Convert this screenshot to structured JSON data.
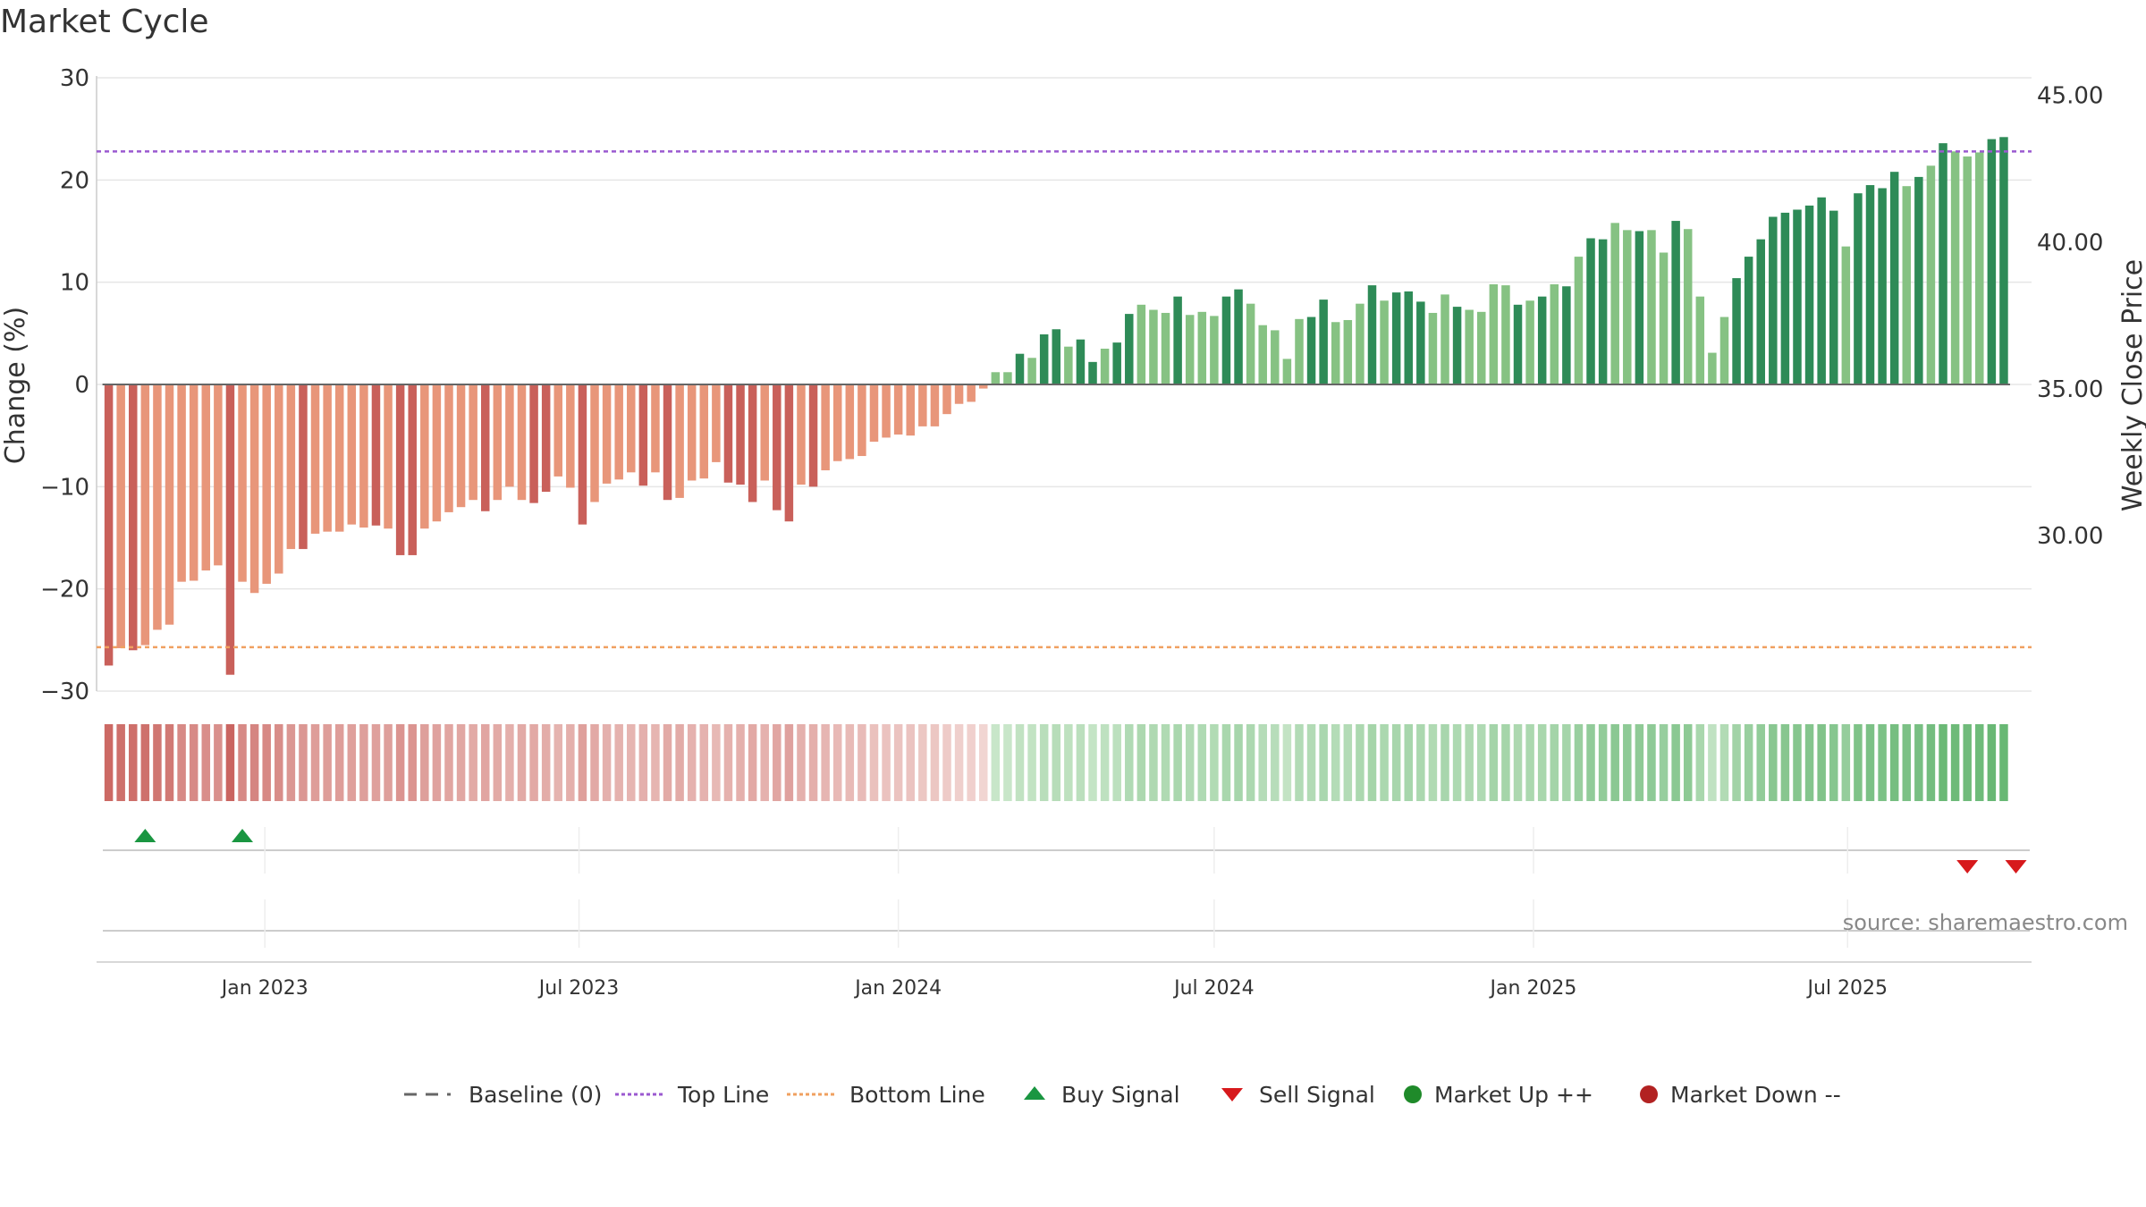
{
  "chart_data": {
    "type": "bar",
    "title": "Market Cycle",
    "ylabel": "Change (%)",
    "y2label": "Weekly Close Price",
    "ylim": [
      -30,
      30
    ],
    "y_ticks": [
      30,
      20,
      10,
      0,
      -10,
      -20,
      -30
    ],
    "y_tick_labels": [
      "30",
      "20",
      "10",
      "0",
      "−10",
      "−20",
      "−30"
    ],
    "y2_ticks": [
      "45.00",
      "40.00",
      "35.00",
      "30.00"
    ],
    "y2_tick_values": [
      45,
      40,
      35,
      30
    ],
    "y2lim": [
      24.7,
      45.6
    ],
    "x_ticks": [
      "Jan 2023",
      "Jul 2023",
      "Jan 2024",
      "Jul 2024",
      "Jan 2025",
      "Jul 2025"
    ],
    "x_tick_dates": [
      "2023-01-01",
      "2023-07-01",
      "2024-01-01",
      "2024-07-01",
      "2025-01-01",
      "2025-07-01"
    ],
    "x_start": "2022-09-26",
    "x_end": "2025-10-15",
    "top_line": 22.8,
    "bottom_line": -25.7,
    "baseline": 0,
    "first_week": "2022-10-03",
    "values": [
      -27.5,
      -25.8,
      -26,
      -25.5,
      -24,
      -23.5,
      -19.3,
      -19.2,
      -18.2,
      -17.7,
      -28.4,
      -19.3,
      -20.4,
      -19.5,
      -18.5,
      -16.1,
      -16.1,
      -14.6,
      -14.4,
      -14.4,
      -13.7,
      -14,
      -13.8,
      -14.1,
      -16.7,
      -16.7,
      -14.1,
      -13.4,
      -12.5,
      -12,
      -11.3,
      -12.4,
      -11.3,
      -10,
      -11.3,
      -11.6,
      -10.5,
      -9,
      -10.1,
      -13.7,
      -11.5,
      -9.7,
      -9.3,
      -8.6,
      -9.9,
      -8.6,
      -11.3,
      -11.1,
      -9.4,
      -9.2,
      -7.6,
      -9.6,
      -9.8,
      -11.5,
      -9.4,
      -12.3,
      -13.4,
      -9.8,
      -10,
      -8.4,
      -7.5,
      -7.3,
      -7,
      -5.6,
      -5.2,
      -4.9,
      -5,
      -4.1,
      -4.1,
      -2.9,
      -1.9,
      -1.7,
      -0.4,
      1.2,
      1.2,
      3,
      2.6,
      4.9,
      5.4,
      3.7,
      4.4,
      2.2,
      3.5,
      4.1,
      6.9,
      7.8,
      7.3,
      7,
      8.6,
      6.8,
      7.1,
      6.7,
      8.6,
      9.3,
      7.9,
      5.8,
      5.3,
      2.5,
      6.4,
      6.6,
      8.3,
      6.1,
      6.3,
      7.9,
      9.7,
      8.2,
      9,
      9.1,
      8.1,
      7,
      8.8,
      7.6,
      7.3,
      7.1,
      9.8,
      9.7,
      7.8,
      8.2,
      8.6,
      9.8,
      9.6,
      12.5,
      14.3,
      14.2,
      15.8,
      15.1,
      15,
      15.1,
      12.9,
      16,
      15.2,
      8.6,
      3.1,
      6.6,
      10.4,
      12.5,
      14.2,
      16.4,
      16.8,
      17.1,
      17.5,
      18.3,
      17,
      13.5,
      18.7,
      19.5,
      19.2,
      20.8,
      19.4,
      20.3,
      21.4,
      23.6,
      22.8,
      22.3,
      22.7,
      24,
      24.2
    ],
    "strong_bars": [
      0,
      2,
      10,
      16,
      22,
      24,
      25,
      31,
      35,
      36,
      39,
      44,
      46,
      51,
      52,
      53,
      55,
      56,
      58,
      75,
      77,
      78,
      80,
      81,
      83,
      84,
      88,
      92,
      93,
      99,
      100,
      104,
      106,
      107,
      108,
      111,
      116,
      118,
      120,
      122,
      123,
      126,
      129,
      134,
      135,
      136,
      137,
      138,
      139,
      140,
      141,
      142,
      144,
      145,
      146,
      147,
      149,
      151,
      155,
      156
    ],
    "buy_signal_weeks": [
      3,
      11
    ],
    "sell_signal_weeks": [
      153,
      157
    ],
    "source": "source: sharemaestro.com",
    "legend": [
      {
        "label": "Baseline (0)",
        "icon": "dash-line",
        "color": "#666666"
      },
      {
        "label": "Top Line",
        "icon": "dotted-line",
        "color": "#9b59d0"
      },
      {
        "label": "Bottom Line",
        "icon": "dotted-line",
        "color": "#f0a060"
      },
      {
        "label": "Buy Signal",
        "icon": "triangle-up",
        "color": "#1a9641"
      },
      {
        "label": "Sell Signal",
        "icon": "triangle-down",
        "color": "#d7191c"
      },
      {
        "label": "Market Up ++",
        "icon": "circle",
        "color": "#1f8a2a"
      },
      {
        "label": "Market Down --",
        "icon": "circle",
        "color": "#b22222"
      }
    ],
    "colors": {
      "neg_strong": "#c9605a",
      "neg_weak": "#e8967a",
      "pos_strong": "#2e8b57",
      "pos_weak": "#86c283",
      "grid": "#e6e6e6",
      "baseline": "#666666"
    }
  }
}
